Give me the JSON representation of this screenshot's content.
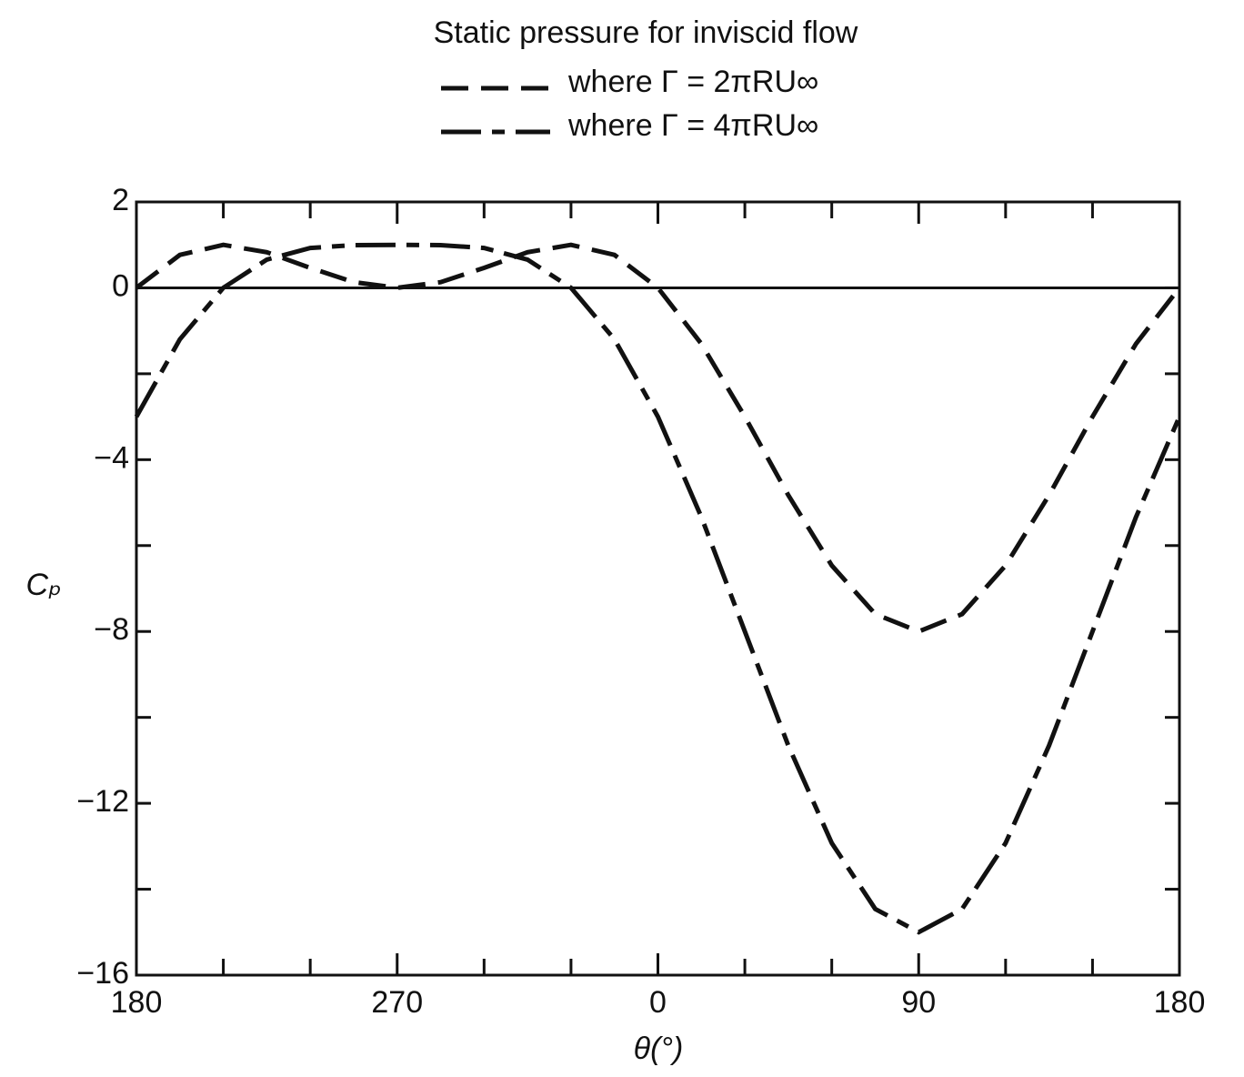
{
  "chart_data": {
    "type": "line",
    "title": "Static pressure for inviscid flow",
    "xlabel": "θ(°)",
    "ylabel": "Cₚ",
    "x": [
      180,
      195,
      210,
      225,
      240,
      255,
      270,
      285,
      300,
      315,
      330,
      345,
      360,
      375,
      390,
      405,
      420,
      435,
      450,
      465,
      480,
      495,
      510,
      525,
      540
    ],
    "series": [
      {
        "name": "where Γ = 2πRU∞",
        "color": "#111111",
        "linestyle": "dashed",
        "values": [
          0,
          0.767,
          1,
          0.828,
          0.464,
          0.132,
          0,
          0.132,
          0.464,
          0.828,
          1,
          0.767,
          0,
          -1.303,
          -3,
          -4.828,
          -6.464,
          -7.596,
          -8,
          -7.596,
          -6.464,
          -4.828,
          -3,
          -1.303,
          0
        ]
      },
      {
        "name": "where Γ = 4πRU∞",
        "color": "#111111",
        "linestyle": "dashdot",
        "values": [
          -3,
          -1.198,
          0,
          0.657,
          0.928,
          0.995,
          1,
          0.995,
          0.928,
          0.657,
          0,
          -1.198,
          -3,
          -5.338,
          -8,
          -10.657,
          -12.928,
          -14.46,
          -15,
          -14.46,
          -12.928,
          -10.657,
          -8,
          -5.338,
          -3
        ]
      }
    ],
    "xlim": [
      180,
      540
    ],
    "xticks": [
      180,
      270,
      {
        "value": 360,
        "label": "0"
      },
      {
        "value": 450,
        "label": "90"
      },
      {
        "value": 540,
        "label": "180"
      }
    ],
    "xminorticks": [
      210,
      240,
      300,
      330,
      390,
      420,
      480,
      510
    ],
    "ylim": [
      -16,
      2
    ],
    "yticks": [
      2,
      0,
      {
        "value": -4,
        "label": "−4"
      },
      {
        "value": -8,
        "label": "−8"
      },
      {
        "value": -12,
        "label": "−12"
      },
      {
        "value": -16,
        "label": "−16"
      }
    ],
    "yminorticks": [
      -2,
      -6,
      -10,
      -14
    ]
  }
}
